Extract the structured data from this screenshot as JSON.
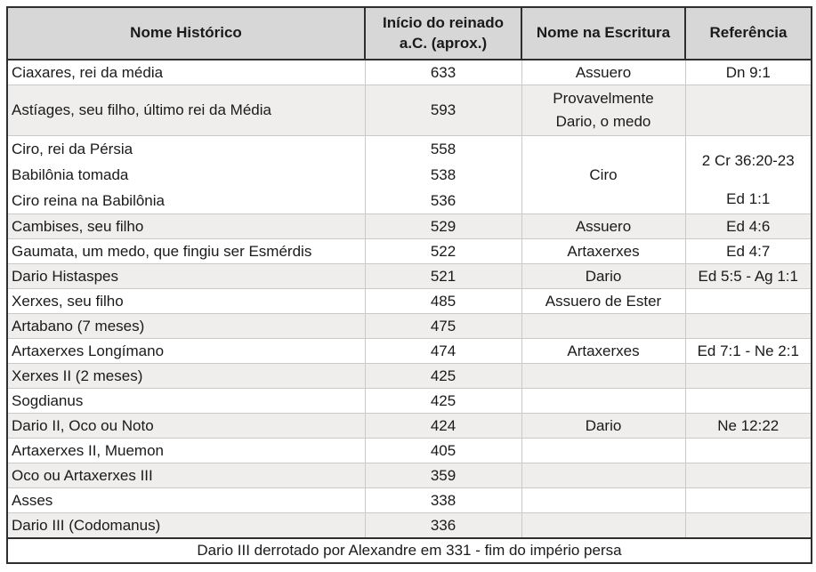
{
  "headers": [
    "Nome Histórico",
    "Início do reinado a.C. (aprox.)",
    "Nome na Escritura",
    "Referência"
  ],
  "rows": [
    {
      "name": "Ciaxares, rei da média",
      "year": "633",
      "scripture": "Assuero",
      "reference": "Dn 9:1",
      "shaded": false
    },
    {
      "name": "Astíages, seu filho, último rei da Média",
      "year": "593",
      "scripture_lines": [
        "Provavelmente",
        "Dario, o medo"
      ],
      "reference": "",
      "shaded": true,
      "tall": 2
    },
    {
      "group": true,
      "shaded": false,
      "lines": [
        {
          "name": "Ciro, rei da Pérsia",
          "year": "558",
          "indent": false
        },
        {
          "name": "Babilônia tomada",
          "year": "538",
          "indent": true
        },
        {
          "name": "Ciro reina na Babilônia",
          "year": "536",
          "indent": true
        }
      ],
      "scripture": "Ciro",
      "reference_top": "2 Cr 36:20-23",
      "reference_bottom": "Ed 1:1"
    },
    {
      "name": "Cambises, seu filho",
      "year": "529",
      "scripture": "Assuero",
      "reference": "Ed 4:6",
      "shaded": true
    },
    {
      "name": "Gaumata, um medo, que fingiu ser Esmérdis",
      "year": "522",
      "scripture": "Artaxerxes",
      "reference": "Ed 4:7",
      "shaded": false
    },
    {
      "name": "Dario Histaspes",
      "year": "521",
      "scripture": "Dario",
      "reference": "Ed 5:5 - Ag 1:1",
      "shaded": true
    },
    {
      "name": "Xerxes, seu filho",
      "year": "485",
      "scripture": "Assuero de Ester",
      "reference": "",
      "shaded": false
    },
    {
      "name": "Artabano (7 meses)",
      "year": "475",
      "scripture": "",
      "reference": "",
      "shaded": true
    },
    {
      "name": "Artaxerxes Longímano",
      "year": "474",
      "scripture": "Artaxerxes",
      "reference": "Ed 7:1 - Ne 2:1",
      "shaded": false
    },
    {
      "name": "Xerxes II (2 meses)",
      "year": "425",
      "scripture": "",
      "reference": "",
      "shaded": true
    },
    {
      "name": "Sogdianus",
      "year": "425",
      "scripture": "",
      "reference": "",
      "shaded": false
    },
    {
      "name": "Dario II, Oco ou Noto",
      "year": "424",
      "scripture": "Dario",
      "reference": "Ne 12:22",
      "shaded": true
    },
    {
      "name": "Artaxerxes II, Muemon",
      "year": "405",
      "scripture": "",
      "reference": "",
      "shaded": false
    },
    {
      "name": "Oco ou Artaxerxes III",
      "year": "359",
      "scripture": "",
      "reference": "",
      "shaded": true
    },
    {
      "name": "Asses",
      "year": "338",
      "scripture": "",
      "reference": "",
      "shaded": false
    },
    {
      "name": "Dario III (Codomanus)",
      "year": "336",
      "scripture": "",
      "reference": "",
      "shaded": true
    }
  ],
  "footer_note": "Dario III derrotado por Alexandre em 331 - fim do império persa",
  "colors": {
    "header_bg": "#d7d7d7",
    "shaded_row_bg": "#efeeec",
    "border_dark": "#2f2f2f",
    "border_light": "#c9c9c9",
    "text": "#1a1a1a",
    "page_bg": "#ffffff"
  }
}
